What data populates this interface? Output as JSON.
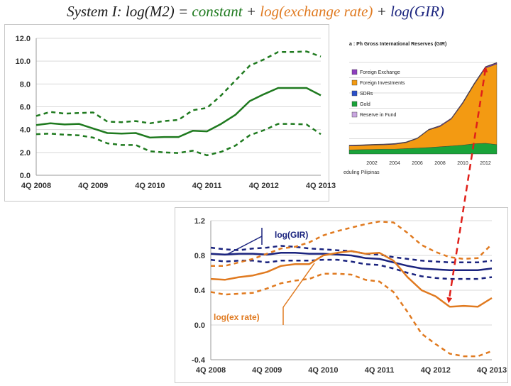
{
  "title": {
    "prefix": "System I: ",
    "lhs": "log(M2) = ",
    "t1": "constant",
    "plus1": " + ",
    "t2": "log(exchange rate)",
    "plus2": " + ",
    "t3": "log(GIR)"
  },
  "colors": {
    "m2_green": "#1f7a1f",
    "gir_navy": "#1a237e",
    "exrate_orange": "#e07a20",
    "arrow_red": "#e0201a",
    "area_orange": "#f39a12",
    "area_green": "#1aa33a",
    "area_purple": "#8e3fbf",
    "area_blue": "#2b4fc9"
  },
  "chart_data": [
    {
      "type": "line",
      "x": [
        "4Q 2008",
        "1Q 2009",
        "2Q 2009",
        "3Q 2009",
        "4Q 2009",
        "1Q 2010",
        "2Q 2010",
        "3Q 2010",
        "4Q 2010",
        "1Q 2011",
        "2Q 2011",
        "3Q 2011",
        "4Q 2011",
        "1Q 2012",
        "2Q 2012",
        "3Q 2012",
        "4Q 2012",
        "1Q 2013",
        "2Q 2013",
        "3Q 2013",
        "4Q 2013"
      ],
      "xticks": [
        "4Q 2008",
        "4Q 2009",
        "4Q 2010",
        "4Q 2011",
        "4Q 2012",
        "4Q 2013"
      ],
      "ylim": [
        0,
        12
      ],
      "yticks": [
        "0.0",
        "2.0",
        "4.0",
        "6.0",
        "8.0",
        "10.0",
        "12.0"
      ],
      "grid": true,
      "series": [
        {
          "values": [
            4.4,
            4.55,
            4.45,
            4.5,
            4.1,
            3.7,
            3.65,
            3.7,
            3.3,
            3.35,
            3.35,
            3.9,
            3.85,
            4.5,
            5.3,
            6.5,
            7.1,
            7.65,
            7.65,
            7.65,
            7.0
          ]
        },
        {
          "values": [
            5.2,
            5.55,
            5.4,
            5.45,
            5.5,
            4.7,
            4.65,
            4.75,
            4.55,
            4.75,
            4.85,
            5.7,
            5.9,
            7.0,
            8.3,
            9.6,
            10.15,
            10.8,
            10.8,
            10.85,
            10.4
          ]
        },
        {
          "values": [
            3.6,
            3.65,
            3.55,
            3.5,
            3.3,
            2.8,
            2.65,
            2.65,
            2.1,
            2.0,
            1.95,
            2.15,
            1.75,
            2.05,
            2.6,
            3.5,
            3.95,
            4.5,
            4.5,
            4.45,
            3.6
          ]
        }
      ]
    },
    {
      "type": "area",
      "title": "Ph Gross International Reserves (GIR)",
      "title_prefix": "a : ",
      "x": [
        2000,
        2001,
        2002,
        2003,
        2004,
        2005,
        2006,
        2007,
        2008,
        2009,
        2010,
        2011,
        2012,
        2013
      ],
      "xticks": [
        "2002",
        "2004",
        "2006",
        "2008",
        "2010",
        "2012"
      ],
      "legend": [
        "Foreign Exchange",
        "Foreign Investments",
        "SDRs",
        "Gold",
        "Reserve in Fund"
      ],
      "legend_placement": "top-left",
      "series": [
        {
          "name": "Gold",
          "values": [
            0.15,
            0.16,
            0.17,
            0.18,
            0.18,
            0.2,
            0.22,
            0.24,
            0.27,
            0.3,
            0.33,
            0.38,
            0.4,
            0.35
          ]
        },
        {
          "name": "Foreign Investments",
          "values": [
            0.15,
            0.15,
            0.16,
            0.16,
            0.18,
            0.22,
            0.35,
            0.65,
            0.75,
            1.0,
            1.55,
            2.2,
            2.8,
            3.0
          ]
        },
        {
          "name": "Foreign Exchange",
          "values": [
            0.02,
            0.02,
            0.02,
            0.02,
            0.02,
            0.02,
            0.02,
            0.02,
            0.03,
            0.03,
            0.03,
            0.03,
            0.04,
            0.04
          ]
        },
        {
          "name": "SDRs",
          "values": [
            0.0,
            0.0,
            0.0,
            0.0,
            0.0,
            0.0,
            0.0,
            0.0,
            0.0,
            0.0,
            0.01,
            0.01,
            0.01,
            0.01
          ]
        },
        {
          "name": "Reserve in Fund",
          "values": [
            0.01,
            0.01,
            0.01,
            0.01,
            0.01,
            0.01,
            0.01,
            0.01,
            0.01,
            0.01,
            0.01,
            0.01,
            0.01,
            0.01
          ]
        }
      ],
      "footnote": "eduling Pilipinas"
    },
    {
      "type": "line",
      "x": [
        "4Q 2008",
        "1Q 2009",
        "2Q 2009",
        "3Q 2009",
        "4Q 2009",
        "1Q 2010",
        "2Q 2010",
        "3Q 2010",
        "4Q 2010",
        "1Q 2011",
        "2Q 2011",
        "3Q 2011",
        "4Q 2011",
        "1Q 2012",
        "2Q 2012",
        "3Q 2012",
        "4Q 2012",
        "1Q 2013",
        "2Q 2013",
        "3Q 2013",
        "4Q 2013"
      ],
      "xticks": [
        "4Q 2008",
        "4Q 2009",
        "4Q 2010",
        "4Q 2011",
        "4Q 2012",
        "4Q 2013"
      ],
      "ylim": [
        -0.4,
        1.2
      ],
      "yticks": [
        "-0.4",
        "0.0",
        "0.4",
        "0.8",
        "1.2"
      ],
      "grid": true,
      "annotations": [
        "log(GIR)",
        "log(ex rate)"
      ],
      "series": [
        {
          "name": "log(GIR)",
          "values": [
            0.82,
            0.81,
            0.82,
            0.82,
            0.81,
            0.83,
            0.83,
            0.82,
            0.82,
            0.81,
            0.8,
            0.77,
            0.76,
            0.72,
            0.68,
            0.65,
            0.64,
            0.63,
            0.63,
            0.63,
            0.65
          ]
        },
        {
          "values": [
            0.89,
            0.87,
            0.86,
            0.88,
            0.89,
            0.91,
            0.9,
            0.88,
            0.87,
            0.86,
            0.85,
            0.82,
            0.81,
            0.78,
            0.76,
            0.74,
            0.73,
            0.72,
            0.72,
            0.72,
            0.74
          ]
        },
        {
          "values": [
            0.75,
            0.73,
            0.74,
            0.74,
            0.72,
            0.74,
            0.74,
            0.74,
            0.75,
            0.75,
            0.73,
            0.7,
            0.69,
            0.65,
            0.6,
            0.56,
            0.54,
            0.53,
            0.53,
            0.53,
            0.55
          ]
        },
        {
          "name": "log(ex rate)",
          "values": [
            0.53,
            0.52,
            0.55,
            0.57,
            0.61,
            0.68,
            0.7,
            0.7,
            0.8,
            0.83,
            0.85,
            0.82,
            0.83,
            0.74,
            0.55,
            0.4,
            0.33,
            0.21,
            0.22,
            0.21,
            0.31
          ]
        },
        {
          "values": [
            0.68,
            0.68,
            0.72,
            0.76,
            0.82,
            0.88,
            0.9,
            0.95,
            1.03,
            1.08,
            1.12,
            1.16,
            1.19,
            1.18,
            1.06,
            0.92,
            0.84,
            0.78,
            0.76,
            0.77,
            0.93
          ]
        },
        {
          "values": [
            0.38,
            0.35,
            0.36,
            0.37,
            0.42,
            0.48,
            0.51,
            0.53,
            0.59,
            0.59,
            0.58,
            0.52,
            0.5,
            0.38,
            0.15,
            -0.1,
            -0.22,
            -0.33,
            -0.36,
            -0.36,
            -0.3
          ]
        }
      ]
    }
  ]
}
